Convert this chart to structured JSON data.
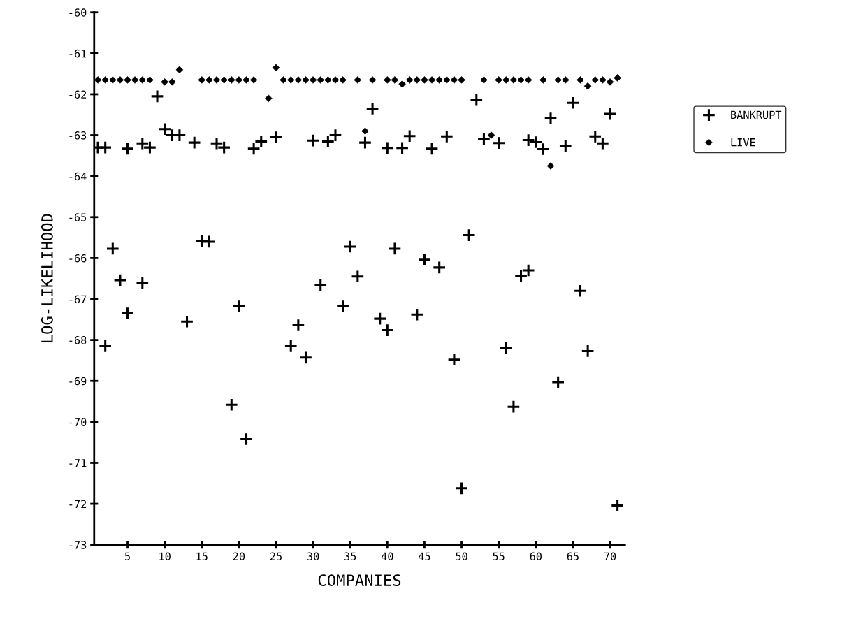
{
  "chart_data": {
    "type": "scatter",
    "xlabel": "COMPANIES",
    "ylabel": "LOG-LIKELIHOOD",
    "xlim": [
      0.5,
      72
    ],
    "ylim": [
      -73,
      -60
    ],
    "xticks": [
      5,
      10,
      15,
      20,
      25,
      30,
      35,
      40,
      45,
      50,
      55,
      60,
      65,
      70
    ],
    "yticks": [
      -60,
      -61,
      -62,
      -63,
      -64,
      -65,
      -66,
      -67,
      -68,
      -69,
      -70,
      -71,
      -72,
      -73
    ],
    "grid": false,
    "legend": "right",
    "series": [
      {
        "name": "BANKRUPT",
        "color": "#000000",
        "marker": "cross",
        "x": [
          1,
          2,
          5,
          7,
          8,
          9,
          10,
          11,
          12,
          14,
          17,
          18,
          22,
          23,
          25,
          30,
          32,
          33,
          37,
          38,
          40,
          42,
          43,
          46,
          48,
          52,
          53,
          55,
          59,
          60,
          61,
          62,
          64,
          65,
          68,
          69,
          70,
          3,
          4,
          7,
          5,
          15,
          16,
          13,
          20,
          28,
          31,
          34,
          35,
          36,
          2,
          27,
          29,
          19,
          21,
          41,
          45,
          47,
          51,
          58,
          59,
          66,
          39,
          40,
          44,
          49,
          56,
          67,
          63,
          57,
          50,
          71
        ],
        "values": [
          -63.3,
          -63.3,
          -63.33,
          -63.2,
          -63.3,
          -62.05,
          -62.85,
          -63.0,
          -63.0,
          -63.18,
          -63.2,
          -63.3,
          -63.33,
          -63.15,
          -63.05,
          -63.13,
          -63.15,
          -63.0,
          -63.18,
          -62.35,
          -63.31,
          -63.31,
          -63.02,
          -63.33,
          -63.03,
          -62.14,
          -63.1,
          -63.19,
          -63.12,
          -63.17,
          -63.34,
          -62.59,
          -63.27,
          -62.21,
          -63.03,
          -63.2,
          -62.48,
          -65.77,
          -66.54,
          -66.6,
          -67.35,
          -65.58,
          -65.6,
          -67.55,
          -67.18,
          -67.64,
          -66.66,
          -67.18,
          -65.72,
          -66.45,
          -68.15,
          -68.15,
          -68.43,
          -69.58,
          -70.42,
          -65.77,
          -66.04,
          -66.23,
          -65.44,
          -66.44,
          -66.3,
          -66.8,
          -67.48,
          -67.76,
          -67.38,
          -68.48,
          -68.2,
          -68.27,
          -69.03,
          -69.63,
          -71.62,
          -72.04
        ]
      },
      {
        "name": "LIVE",
        "color": "#000000",
        "marker": "diamond",
        "x": [
          1,
          2,
          3,
          4,
          5,
          6,
          7,
          8,
          10,
          11,
          12,
          15,
          16,
          17,
          18,
          19,
          20,
          21,
          22,
          24,
          25,
          26,
          27,
          28,
          29,
          30,
          31,
          32,
          33,
          34,
          36,
          37,
          38,
          40,
          41,
          42,
          43,
          44,
          45,
          46,
          47,
          48,
          49,
          50,
          53,
          54,
          55,
          56,
          57,
          58,
          59,
          61,
          62,
          63,
          64,
          66,
          67,
          68,
          69,
          70,
          71
        ],
        "values": [
          -61.65,
          -61.65,
          -61.65,
          -61.65,
          -61.65,
          -61.65,
          -61.65,
          -61.65,
          -61.7,
          -61.7,
          -61.4,
          -61.65,
          -61.65,
          -61.65,
          -61.65,
          -61.65,
          -61.65,
          -61.65,
          -61.65,
          -62.1,
          -61.35,
          -61.65,
          -61.65,
          -61.65,
          -61.65,
          -61.65,
          -61.65,
          -61.65,
          -61.65,
          -61.65,
          -61.65,
          -62.9,
          -61.65,
          -61.65,
          -61.65,
          -61.75,
          -61.65,
          -61.65,
          -61.65,
          -61.65,
          -61.65,
          -61.65,
          -61.65,
          -61.65,
          -61.65,
          -63.0,
          -61.65,
          -61.65,
          -61.65,
          -61.65,
          -61.65,
          -61.65,
          -63.75,
          -61.65,
          -61.65,
          -61.65,
          -61.8,
          -61.65,
          -61.65,
          -61.7,
          -61.6
        ]
      }
    ]
  }
}
